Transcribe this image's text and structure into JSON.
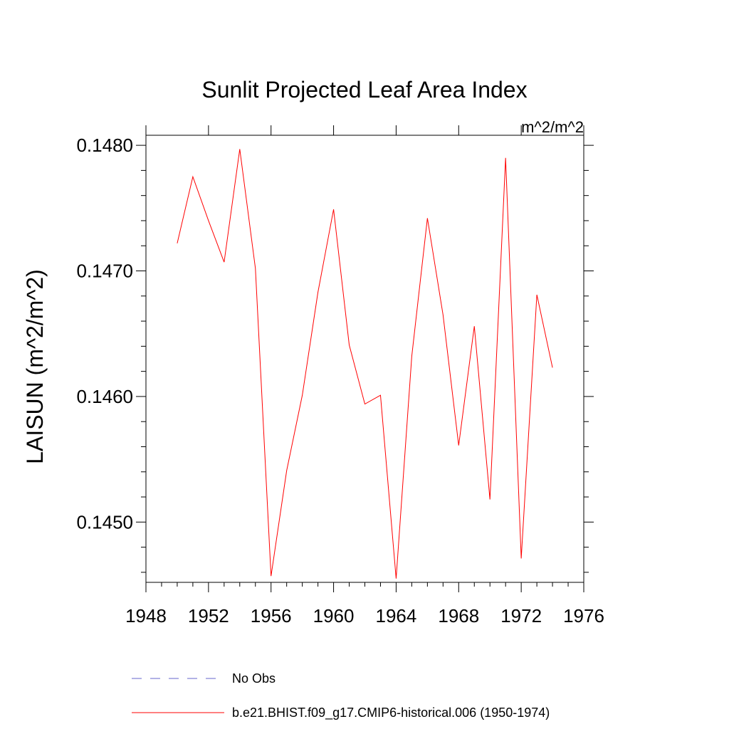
{
  "chart_data": {
    "type": "line",
    "title": "Sunlit Projected Leaf Area Index",
    "units_label": "m^2/m^2",
    "ylabel": "LAISUN  (m^2/m^2)",
    "xlabel": "",
    "xlim": [
      1948,
      1976
    ],
    "ylim": [
      0.14452,
      0.14808
    ],
    "x_ticks": [
      1948,
      1952,
      1956,
      1960,
      1964,
      1968,
      1972,
      1976
    ],
    "x_tick_labels": [
      "1948",
      "1952",
      "1956",
      "1960",
      "1964",
      "1968",
      "1972",
      "1976"
    ],
    "y_ticks": [
      0.145,
      0.146,
      0.147,
      0.148
    ],
    "y_tick_labels": [
      "0.1450",
      "0.1460",
      "0.1470",
      "0.1480"
    ],
    "grid": false,
    "legend_position": "bottom",
    "series": [
      {
        "name": "No Obs",
        "color": "#6666cc",
        "dash": "dashed",
        "x": [],
        "y": []
      },
      {
        "name": "b.e21.BHIST.f09_g17.CMIP6-historical.006 (1950-1974)",
        "color": "#ff0000",
        "dash": "solid",
        "x": [
          1950,
          1951,
          1952,
          1953,
          1954,
          1955,
          1956,
          1957,
          1958,
          1959,
          1960,
          1961,
          1962,
          1963,
          1964,
          1965,
          1966,
          1967,
          1968,
          1969,
          1970,
          1971,
          1972,
          1973,
          1974
        ],
        "y": [
          0.14722,
          0.14775,
          0.1474,
          0.14707,
          0.14797,
          0.14702,
          0.14457,
          0.14541,
          0.14601,
          0.14683,
          0.14749,
          0.14641,
          0.14594,
          0.14601,
          0.14455,
          0.14632,
          0.14742,
          0.14665,
          0.14561,
          0.14656,
          0.14518,
          0.1479,
          0.14471,
          0.14681,
          0.14623
        ]
      }
    ]
  }
}
